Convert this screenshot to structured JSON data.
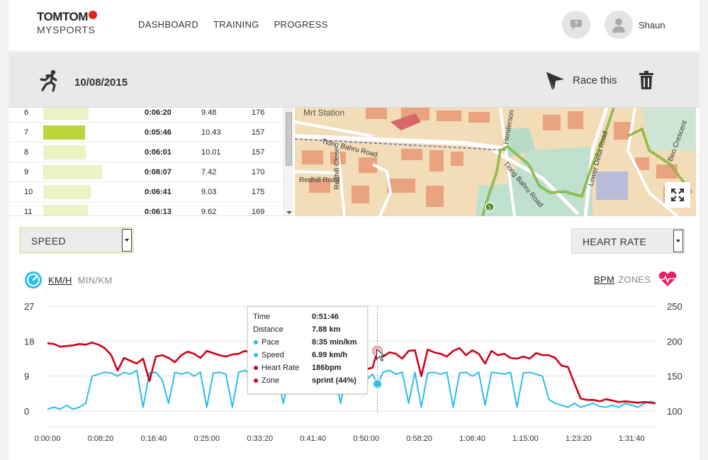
{
  "brand": {
    "name_top": "TOMTOM",
    "name_bottom": "MYSPORTS",
    "accent": "#e2231a"
  },
  "nav": [
    "DASHBOARD",
    "TRAINING",
    "PROGRESS"
  ],
  "user": {
    "name": "Shaun"
  },
  "activity": {
    "icon": "running-icon",
    "date": "10/08/2015",
    "race_label": "Race this"
  },
  "splits": [
    {
      "num": "6",
      "time": "0:06:20",
      "speed": "9.48",
      "hr": "176",
      "bar": 0.46,
      "best": false
    },
    {
      "num": "7",
      "time": "0:05:46",
      "speed": "10.43",
      "hr": "157",
      "bar": 0.42,
      "best": true
    },
    {
      "num": "8",
      "time": "0:06:01",
      "speed": "10.01",
      "hr": "157",
      "bar": 0.43,
      "best": false
    },
    {
      "num": "9",
      "time": "0:08:07",
      "speed": "7.42",
      "hr": "170",
      "bar": 0.59,
      "best": false
    },
    {
      "num": "10",
      "time": "0:06:41",
      "speed": "9.03",
      "hr": "175",
      "bar": 0.48,
      "best": false
    },
    {
      "num": "11",
      "time": "0:06:13",
      "speed": "9.62",
      "hr": "169",
      "bar": 0.45,
      "best": false
    }
  ],
  "map": {
    "labels": [
      "Mrt Station",
      "Tiong Bahru Road",
      "Tiong Bahru Road",
      "Redhill Close",
      "Redhill Road",
      "Henderson",
      "Lower Delta Road",
      "Bео Crescent"
    ]
  },
  "selectors": {
    "left": "SPEED",
    "right": "HEART RATE"
  },
  "units": {
    "left": [
      "KM/H",
      "MIN/KM"
    ],
    "right": [
      "BPM",
      "ZONES"
    ]
  },
  "tooltip": {
    "rows": [
      {
        "key": "Time",
        "value": "0:51:46",
        "dot": ""
      },
      {
        "key": "Distance",
        "value": "7.88 km",
        "dot": ""
      },
      {
        "key": "Pace",
        "value": "8:35 min/km",
        "dot": "#2bbde8"
      },
      {
        "key": "Speed",
        "value": "6.99 km/h",
        "dot": "#2bbde8"
      },
      {
        "key": "Heart Rate",
        "value": "186bpm",
        "dot": "#d0021b"
      },
      {
        "key": "Zone",
        "value": "sprint (44%)",
        "dot": "#d0021b"
      }
    ]
  },
  "chart_data": {
    "type": "line",
    "x_unit": "elapsed time (h:mm:ss)",
    "x_range_seconds": [
      0,
      5725
    ],
    "x_ticks": [
      "0:00:00",
      "0:08:20",
      "0:16:40",
      "0:25:00",
      "0:33:20",
      "0:41:40",
      "0:50:00",
      "0:58:20",
      "1:06:40",
      "1:15:00",
      "1:23:20",
      "1:31:40"
    ],
    "y_left": {
      "label": "KM/H",
      "ticks": [
        "0",
        "9",
        "18",
        "27"
      ],
      "range": [
        0,
        27
      ]
    },
    "y_right": {
      "label": "BPM",
      "ticks": [
        "100",
        "150",
        "200",
        "250"
      ],
      "range": [
        100,
        250
      ]
    },
    "cursor_x_seconds": 3106,
    "series": [
      {
        "name": "Speed",
        "color": "#2bbde8",
        "x": [
          0,
          60,
          120,
          180,
          240,
          300,
          360,
          420,
          480,
          540,
          600,
          660,
          720,
          780,
          840,
          900,
          960,
          1020,
          1080,
          1140,
          1200,
          1260,
          1320,
          1380,
          1440,
          1500,
          1560,
          1620,
          1680,
          1740,
          1800,
          1860,
          1920,
          1980,
          2040,
          2100,
          2160,
          2220,
          2280,
          2340,
          2400,
          2460,
          2520,
          2580,
          2640,
          2700,
          2760,
          2820,
          2880,
          2940,
          3000,
          3060,
          3106,
          3160,
          3220,
          3280,
          3340,
          3400,
          3460,
          3520,
          3580,
          3640,
          3700,
          3760,
          3820,
          3880,
          3940,
          4000,
          4060,
          4120,
          4180,
          4240,
          4300,
          4360,
          4420,
          4480,
          4540,
          4600,
          4660,
          4720,
          4780,
          4840,
          4900,
          4960,
          5020,
          5080,
          5140,
          5200,
          5260,
          5320,
          5380,
          5440,
          5500,
          5560,
          5620,
          5680,
          5725
        ],
        "values": [
          0.5,
          1,
          0.5,
          1.5,
          0.5,
          1,
          2,
          9,
          9.5,
          10,
          9.8,
          9,
          10,
          9.5,
          10.5,
          1,
          9.8,
          10,
          8,
          2,
          10,
          9.5,
          10,
          9,
          10,
          1,
          9.8,
          10,
          9.5,
          1,
          10,
          10.5,
          9,
          10,
          8,
          9.8,
          10,
          2,
          10,
          10.5,
          9.5,
          10,
          9.8,
          10.2,
          8,
          10,
          2,
          10,
          9,
          10,
          8,
          9.5,
          7,
          10,
          10.5,
          9.5,
          10,
          2,
          10,
          1,
          9.8,
          10,
          9.5,
          10,
          1,
          9.8,
          10,
          9,
          10,
          1.5,
          10,
          9.8,
          9.5,
          10,
          1,
          9.8,
          10,
          9.5,
          9,
          3,
          2,
          1.5,
          1,
          2,
          1,
          1.5,
          2,
          1.2,
          1,
          1.5,
          1,
          2,
          1.5,
          1,
          2,
          2.5,
          2
        ]
      },
      {
        "name": "Heart Rate",
        "color": "#d0021b",
        "x": [
          0,
          60,
          120,
          180,
          240,
          300,
          360,
          420,
          480,
          540,
          600,
          660,
          720,
          780,
          840,
          900,
          960,
          1020,
          1080,
          1140,
          1200,
          1260,
          1320,
          1380,
          1440,
          1500,
          1560,
          1620,
          1680,
          1740,
          1800,
          1860,
          1920,
          1980,
          2040,
          2100,
          2160,
          2220,
          2280,
          2340,
          2400,
          2460,
          2520,
          2580,
          2640,
          2700,
          2760,
          2820,
          2880,
          2940,
          3000,
          3060,
          3106,
          3160,
          3220,
          3280,
          3340,
          3400,
          3460,
          3520,
          3580,
          3640,
          3700,
          3760,
          3820,
          3880,
          3940,
          4000,
          4060,
          4120,
          4180,
          4240,
          4300,
          4360,
          4420,
          4480,
          4540,
          4600,
          4660,
          4720,
          4780,
          4840,
          4900,
          4960,
          5020,
          5080,
          5140,
          5200,
          5260,
          5320,
          5380,
          5440,
          5500,
          5560,
          5620,
          5680,
          5725
        ],
        "values": [
          197,
          196,
          192,
          193,
          194,
          196,
          195,
          198,
          195,
          190,
          180,
          158,
          176,
          172,
          168,
          175,
          143,
          178,
          180,
          176,
          170,
          180,
          185,
          182,
          176,
          186,
          183,
          180,
          178,
          181,
          182,
          186,
          183,
          184,
          187,
          182,
          180,
          185,
          178,
          180,
          182,
          185,
          180,
          183,
          150,
          180,
          178,
          160,
          150,
          172,
          160,
          162,
          186,
          178,
          184,
          182,
          175,
          186,
          187,
          150,
          188,
          184,
          182,
          178,
          186,
          190,
          180,
          187,
          182,
          168,
          186,
          180,
          182,
          176,
          175,
          178,
          175,
          183,
          180,
          180,
          176,
          165,
          163,
          140,
          118,
          116,
          116,
          114,
          117,
          115,
          113,
          114,
          113,
          112,
          113,
          112,
          111
        ]
      }
    ]
  }
}
